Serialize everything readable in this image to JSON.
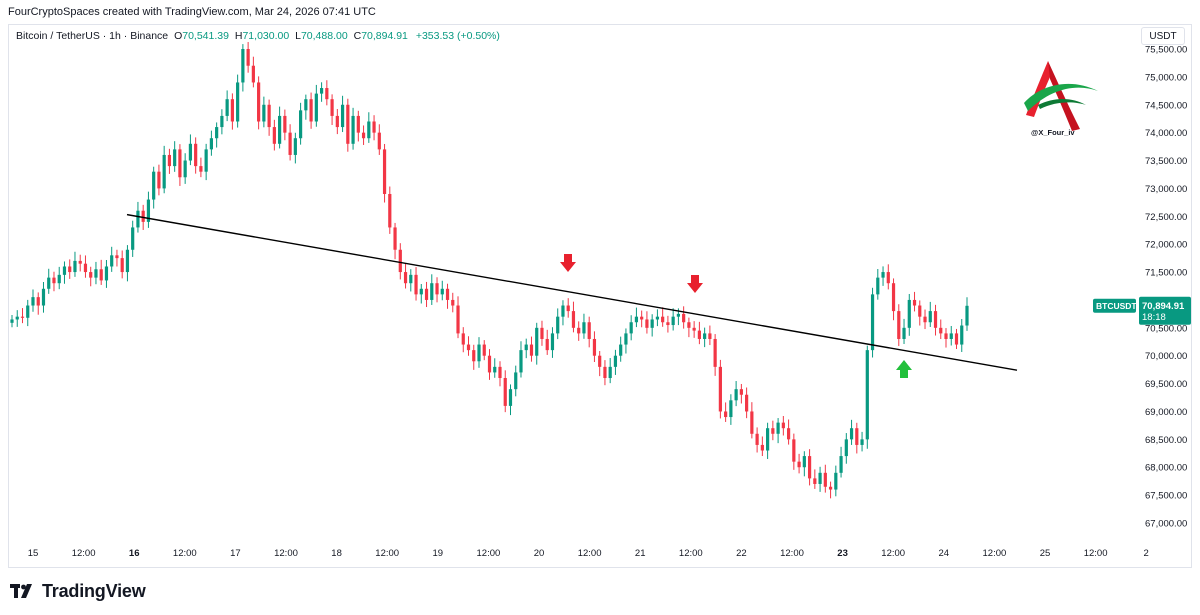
{
  "header": {
    "credit": "FourCryptoSpaces created with TradingView.com, Mar 24, 2026 07:41 UTC"
  },
  "legend": {
    "symbol": "Bitcoin / TetherUS · 1h · Binance",
    "o_label": "O",
    "o_value": "70,541.39",
    "h_label": "H",
    "h_value": "71,030.00",
    "l_label": "L",
    "l_value": "70,488.00",
    "c_label": "C",
    "c_value": "70,894.91",
    "change": "+353.53 (+0.50%)"
  },
  "currency_button": "USDT",
  "price_tag": {
    "symbol": "BTCUSDT",
    "price": "70,894.91",
    "countdown": "18:18"
  },
  "watermark_handle": "@X_Four_iv",
  "footer_logo": "TradingView",
  "colors": {
    "up": "#089981",
    "down": "#f23645",
    "arrow_down": "#e8212e",
    "arrow_up": "#22c03b",
    "trendline": "#000000"
  },
  "chart_data": {
    "type": "candlestick",
    "y_axis": {
      "min": 66800,
      "max": 75800,
      "tick_values": [
        67000,
        67500,
        68000,
        68500,
        69000,
        69500,
        70000,
        70500,
        71000,
        71500,
        72000,
        72500,
        73000,
        73500,
        74000,
        74500,
        75000,
        75500
      ],
      "tick_labels": [
        "67,000.00",
        "67,500.00",
        "68,000.00",
        "68,500.00",
        "69,000.00",
        "69,500.00",
        "70,000.00",
        "70,500.00",
        "71,000.00",
        "71,500.00",
        "72,000.00",
        "72,500.00",
        "73,000.00",
        "73,500.00",
        "74,000.00",
        "74,500.00",
        "75,000.00",
        "75,500.00"
      ],
      "side": "right"
    },
    "x_axis": {
      "tick_labels": [
        "15",
        "12:00",
        "16",
        "12:00",
        "17",
        "12:00",
        "18",
        "12:00",
        "19",
        "12:00",
        "20",
        "12:00",
        "21",
        "12:00",
        "22",
        "12:00",
        "23",
        "12:00",
        "24",
        "12:00",
        "25",
        "12:00",
        "2"
      ],
      "bold_ticks": [
        false,
        false,
        true,
        false,
        false,
        false,
        false,
        false,
        false,
        false,
        false,
        false,
        false,
        false,
        false,
        false,
        true,
        false,
        false,
        false,
        false,
        false,
        false
      ]
    },
    "bars_start_index": 0,
    "candles_close": [
      70650,
      70700,
      70680,
      70900,
      71050,
      70900,
      71200,
      71400,
      71300,
      71450,
      71600,
      71500,
      71700,
      71650,
      71500,
      71400,
      71550,
      71350,
      71600,
      71800,
      71750,
      71500,
      71900,
      72300,
      72600,
      72400,
      72800,
      73300,
      73000,
      73600,
      73400,
      73700,
      73200,
      73500,
      73800,
      73400,
      73300,
      73700,
      73900,
      74100,
      74300,
      74600,
      74200,
      74900,
      75500,
      75200,
      74900,
      74200,
      74500,
      74100,
      73800,
      74300,
      74000,
      73600,
      73900,
      74400,
      74600,
      74200,
      74700,
      74800,
      74600,
      74300,
      74100,
      74500,
      73800,
      74300,
      74000,
      73900,
      74200,
      74000,
      73700,
      72900,
      72300,
      71900,
      71500,
      71300,
      71450,
      71100,
      71200,
      71000,
      71300,
      71100,
      71200,
      71000,
      70900,
      70400,
      70200,
      70100,
      69900,
      70200,
      70000,
      69700,
      69800,
      69600,
      69100,
      69400,
      69700,
      70100,
      70200,
      70000,
      70500,
      70300,
      70100,
      70400,
      70700,
      70900,
      70800,
      70500,
      70400,
      70600,
      70300,
      70000,
      69800,
      69600,
      69800,
      70000,
      70200,
      70400,
      70600,
      70700,
      70650,
      70500,
      70650,
      70700,
      70600,
      70550,
      70700,
      70750,
      70600,
      70500,
      70450,
      70300,
      70400,
      70300,
      69800,
      69000,
      68900,
      69200,
      69400,
      69300,
      69000,
      68600,
      68400,
      68300,
      68700,
      68600,
      68800,
      68700,
      68500,
      68100,
      68000,
      68200,
      67800,
      67700,
      67900,
      67650,
      67600,
      67900,
      68200,
      68500,
      68700,
      68400,
      68500,
      70100,
      71100,
      71400,
      71500,
      71300,
      70800,
      70300,
      70500,
      71000,
      70900,
      70700,
      70600,
      70800,
      70500,
      70400,
      70300,
      70400,
      70200,
      70541.39,
      70894.91
    ],
    "trendline": {
      "start_price": 72530,
      "end_price": 69740,
      "start_label": "16 06:00",
      "end_label": "24 ~20:00"
    },
    "annotations": [
      {
        "type": "arrow-down",
        "near": "20 ~09:00",
        "price": 71200
      },
      {
        "type": "arrow-down",
        "near": "21 ~14:00",
        "price": 71150
      },
      {
        "type": "arrow-up",
        "near": "23 ~15:00",
        "price": 69600
      }
    ],
    "last_price": 70894.91
  }
}
